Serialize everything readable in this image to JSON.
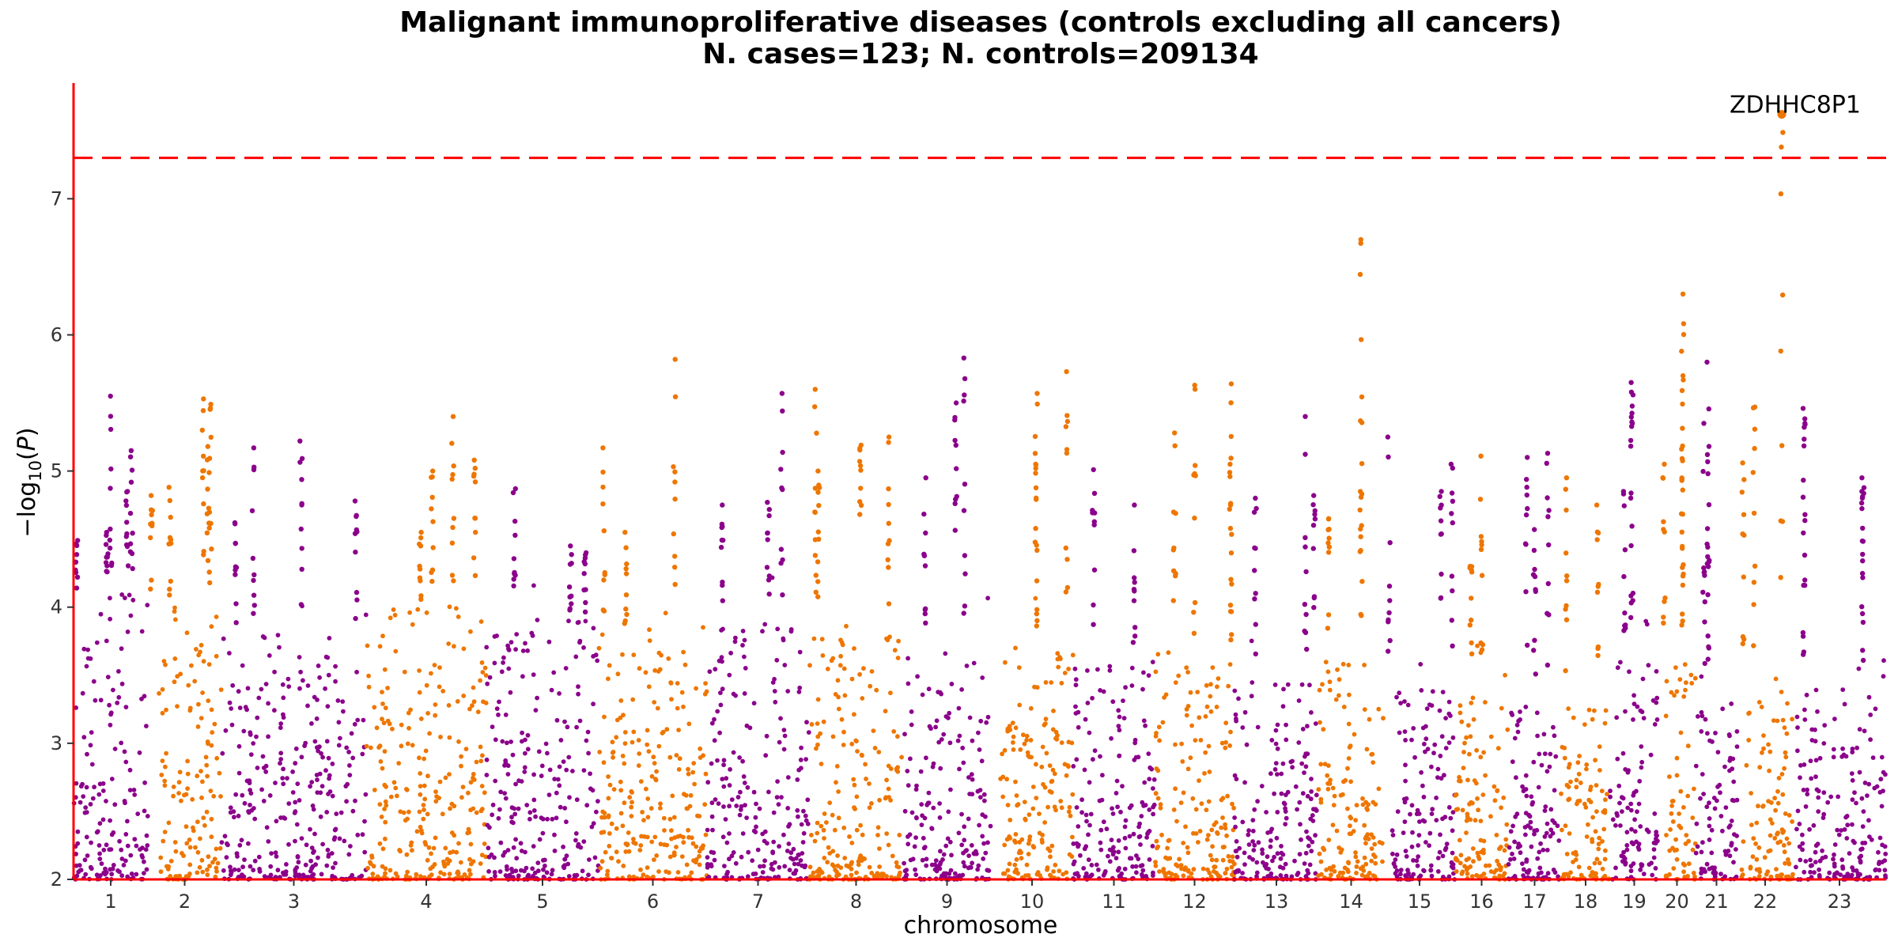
{
  "chart_data": {
    "type": "scatter",
    "title": "Malignant immunoproliferative diseases (controls excluding all cancers)",
    "subtitle": "N. cases=123; N. controls=209134",
    "xlabel": "chromosome",
    "ylabel": "−log10(P)",
    "ylim": [
      2,
      7.85
    ],
    "yticks": [
      2,
      3,
      4,
      5,
      6,
      7
    ],
    "significance_threshold": 7.3,
    "colors": {
      "odd": "#8b008b",
      "even": "#ee7600",
      "threshold": "#ff0000",
      "axis": "#ff0000"
    },
    "chromosomes": [
      {
        "label": "1",
        "density": 4.1,
        "peaks": [
          [
            0.5,
            5.55
          ],
          [
            0.78,
            5.15
          ],
          [
            0.72,
            4.85
          ],
          [
            0.45,
            4.55
          ],
          [
            0.04,
            4.49
          ]
        ]
      },
      {
        "label": "2",
        "density": 4.0,
        "peaks": [
          [
            0.75,
            5.53
          ],
          [
            0.85,
            5.49
          ],
          [
            0.82,
            5.18
          ],
          [
            0.05,
            4.82
          ],
          [
            0.3,
            4.88
          ]
        ]
      },
      {
        "label": "3",
        "density": 3.8,
        "peaks": [
          [
            0.55,
            5.22
          ],
          [
            0.1,
            4.62
          ],
          [
            0.22,
            5.17
          ],
          [
            0.93,
            4.78
          ]
        ]
      },
      {
        "label": "4",
        "density": 4.0,
        "peaks": [
          [
            0.72,
            5.4
          ],
          [
            0.9,
            5.08
          ],
          [
            0.55,
            5.0
          ],
          [
            0.45,
            4.55
          ]
        ]
      },
      {
        "label": "5",
        "density": 3.9,
        "peaks": [
          [
            0.25,
            4.87
          ],
          [
            0.75,
            4.45
          ],
          [
            0.88,
            4.4
          ]
        ]
      },
      {
        "label": "6",
        "density": 3.8,
        "peaks": [
          [
            0.7,
            5.82
          ],
          [
            0.05,
            5.17
          ],
          [
            0.25,
            4.55
          ]
        ]
      },
      {
        "label": "7",
        "density": 3.9,
        "peaks": [
          [
            0.73,
            5.57
          ],
          [
            0.15,
            4.75
          ],
          [
            0.6,
            4.77
          ]
        ]
      },
      {
        "label": "8",
        "density": 3.8,
        "peaks": [
          [
            0.07,
            5.6
          ],
          [
            0.85,
            5.25
          ],
          [
            0.55,
            5.19
          ],
          [
            0.1,
            5.0
          ]
        ]
      },
      {
        "label": "9",
        "density": 3.7,
        "peaks": [
          [
            0.7,
            5.83
          ],
          [
            0.6,
            5.5
          ],
          [
            0.25,
            4.95
          ]
        ]
      },
      {
        "label": "10",
        "density": 3.7,
        "peaks": [
          [
            0.92,
            5.73
          ],
          [
            0.55,
            5.57
          ],
          [
            0.55,
            5.05
          ]
        ]
      },
      {
        "label": "11",
        "density": 3.6,
        "peaks": [
          [
            0.25,
            5.01
          ],
          [
            0.75,
            4.75
          ]
        ]
      },
      {
        "label": "12",
        "density": 3.6,
        "peaks": [
          [
            0.5,
            5.63
          ],
          [
            0.95,
            5.64
          ],
          [
            0.25,
            5.28
          ],
          [
            0.95,
            5.05
          ]
        ]
      },
      {
        "label": "13",
        "density": 3.5,
        "peaks": [
          [
            0.85,
            5.4
          ],
          [
            0.95,
            4.82
          ],
          [
            0.25,
            4.8
          ]
        ]
      },
      {
        "label": "14",
        "density": 3.6,
        "peaks": [
          [
            0.65,
            6.7
          ],
          [
            0.65,
            4.85
          ],
          [
            0.15,
            4.65
          ]
        ]
      },
      {
        "label": "15",
        "density": 3.4,
        "peaks": [
          [
            0.07,
            5.25
          ],
          [
            0.95,
            5.05
          ],
          [
            0.8,
            4.85
          ]
        ]
      },
      {
        "label": "16",
        "density": 3.4,
        "peaks": [
          [
            0.5,
            5.11
          ],
          [
            0.3,
            4.3
          ]
        ]
      },
      {
        "label": "17",
        "density": 3.3,
        "peaks": [
          [
            0.75,
            5.13
          ],
          [
            0.35,
            5.1
          ],
          [
            0.5,
            4.57
          ]
        ]
      },
      {
        "label": "18",
        "density": 3.3,
        "peaks": [
          [
            0.1,
            4.95
          ],
          [
            0.75,
            4.75
          ]
        ]
      },
      {
        "label": "19",
        "density": 3.6,
        "peaks": [
          [
            0.45,
            5.65
          ],
          [
            0.45,
            5.58
          ],
          [
            0.3,
            4.85
          ]
        ]
      },
      {
        "label": "20",
        "density": 3.6,
        "peaks": [
          [
            0.65,
            6.3
          ],
          [
            0.65,
            5.88
          ],
          [
            0.65,
            5.7
          ],
          [
            0.15,
            5.05
          ]
        ]
      },
      {
        "label": "21",
        "density": 3.3,
        "peaks": [
          [
            0.3,
            5.8
          ],
          [
            0.2,
            5.35
          ],
          [
            0.3,
            4.98
          ]
        ]
      },
      {
        "label": "22",
        "density": 3.5,
        "peaks": [
          [
            0.8,
            7.62
          ],
          [
            0.3,
            5.47
          ],
          [
            0.1,
            5.06
          ]
        ]
      },
      {
        "label": "23",
        "density": 3.4,
        "peaks": [
          [
            0.12,
            5.46
          ],
          [
            0.12,
            5.35
          ],
          [
            0.75,
            4.95
          ],
          [
            0.75,
            4.85
          ]
        ]
      }
    ],
    "annotations": [
      {
        "label": "ZDHHC8P1",
        "chromosome": "22",
        "value": 7.62
      }
    ]
  }
}
